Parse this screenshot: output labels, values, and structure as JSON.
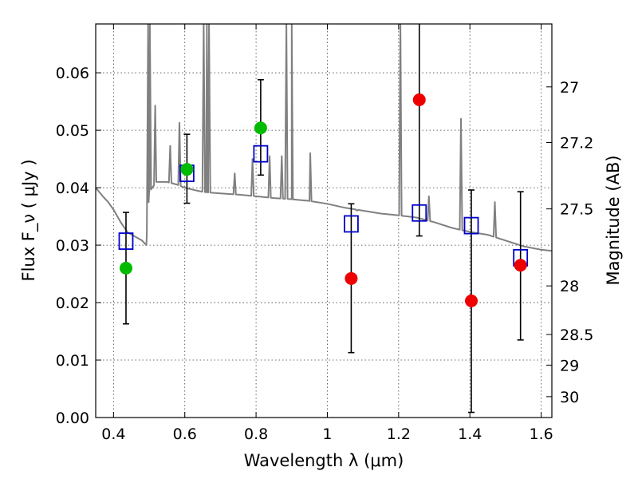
{
  "chart_data": {
    "type": "scatter",
    "title": "",
    "xlabel": "Wavelength  λ (μm)",
    "ylabel": "Flux  F_ν  ( μJy )",
    "y2label": "Magnitude (AB)",
    "xlim": [
      0.35,
      1.63
    ],
    "ylim": [
      0.0,
      0.0685
    ],
    "grid": true,
    "x_ticks": [
      {
        "value": 0.4,
        "label": "0.4"
      },
      {
        "value": 0.6,
        "label": "0.6"
      },
      {
        "value": 0.8,
        "label": "0.8"
      },
      {
        "value": 1.0,
        "label": "1"
      },
      {
        "value": 1.2,
        "label": "1.2"
      },
      {
        "value": 1.4,
        "label": "1.4"
      },
      {
        "value": 1.6,
        "label": "1.6"
      }
    ],
    "y_ticks": [
      {
        "value": 0.0,
        "label": "0.00"
      },
      {
        "value": 0.01,
        "label": "0.01"
      },
      {
        "value": 0.02,
        "label": "0.02"
      },
      {
        "value": 0.03,
        "label": "0.03"
      },
      {
        "value": 0.04,
        "label": "0.04"
      },
      {
        "value": 0.05,
        "label": "0.05"
      },
      {
        "value": 0.06,
        "label": "0.06"
      }
    ],
    "y2_ticks": [
      {
        "value": 27,
        "label": "27"
      },
      {
        "value": 27.2,
        "label": "27.2"
      },
      {
        "value": 27.5,
        "label": "27.5"
      },
      {
        "value": 28,
        "label": "28"
      },
      {
        "value": 28.5,
        "label": "28.5"
      },
      {
        "value": 29,
        "label": "29"
      },
      {
        "value": 30,
        "label": "30"
      }
    ],
    "series": [
      {
        "kind": "spectrum-line",
        "color": "#808080",
        "x": [
          0.35,
          0.37,
          0.385,
          0.4,
          0.42,
          0.44,
          0.46,
          0.48,
          0.492,
          0.5,
          0.52,
          0.55,
          0.58,
          0.6,
          0.62,
          0.64,
          0.66,
          0.7,
          0.75,
          0.8,
          0.85,
          0.9,
          0.95,
          1.0,
          1.05,
          1.1,
          1.15,
          1.2,
          1.25,
          1.3,
          1.35,
          1.4,
          1.45,
          1.5,
          1.55,
          1.6,
          1.63
        ],
        "y": [
          0.04,
          0.0385,
          0.0375,
          0.0362,
          0.034,
          0.0322,
          0.0315,
          0.0308,
          0.03,
          0.0392,
          0.041,
          0.041,
          0.0405,
          0.04,
          0.0397,
          0.0394,
          0.0392,
          0.039,
          0.0388,
          0.0385,
          0.0382,
          0.038,
          0.0377,
          0.0372,
          0.0365,
          0.036,
          0.0355,
          0.0352,
          0.0348,
          0.034,
          0.033,
          0.0323,
          0.0318,
          0.0308,
          0.0298,
          0.0292,
          0.029
        ],
        "emission_lines": [
          {
            "x": 0.497,
            "peak": 0.0685
          },
          {
            "x": 0.502,
            "peak": 0.0685
          },
          {
            "x": 0.517,
            "peak": 0.0543
          },
          {
            "x": 0.559,
            "peak": 0.0473
          },
          {
            "x": 0.585,
            "peak": 0.0513
          },
          {
            "x": 0.653,
            "peak": 0.0685
          },
          {
            "x": 0.662,
            "peak": 0.0685
          },
          {
            "x": 0.668,
            "peak": 0.0685
          },
          {
            "x": 0.74,
            "peak": 0.0425
          },
          {
            "x": 0.79,
            "peak": 0.045
          },
          {
            "x": 0.838,
            "peak": 0.0455
          },
          {
            "x": 0.872,
            "peak": 0.0455
          },
          {
            "x": 0.885,
            "peak": 0.0685
          },
          {
            "x": 0.9,
            "peak": 0.0685
          },
          {
            "x": 0.952,
            "peak": 0.046
          },
          {
            "x": 1.083,
            "peak": 0.036
          },
          {
            "x": 1.205,
            "peak": 0.0685
          },
          {
            "x": 1.285,
            "peak": 0.0385
          },
          {
            "x": 1.375,
            "peak": 0.052
          },
          {
            "x": 1.47,
            "peak": 0.0375
          }
        ]
      },
      {
        "kind": "model-photometry",
        "color": "#0000cc",
        "x": [
          0.435,
          0.606,
          0.813,
          1.067,
          1.258,
          1.404,
          1.542
        ],
        "y": [
          0.0307,
          0.0425,
          0.0459,
          0.0337,
          0.0356,
          0.0334,
          0.0278
        ]
      },
      {
        "kind": "detections",
        "color": "#00bb00",
        "x": [
          0.435,
          0.606,
          0.813
        ],
        "y": [
          0.026,
          0.0432,
          0.0504
        ],
        "yerr_low": [
          0.0163,
          0.0373,
          0.0422
        ],
        "yerr_high": [
          0.0357,
          0.0493,
          0.0588
        ]
      },
      {
        "kind": "upper-limits",
        "color": "#ee0000",
        "x": [
          1.067,
          1.258,
          1.404,
          1.542
        ],
        "y": [
          0.0242,
          0.0553,
          0.0203,
          0.0265
        ],
        "yerr_low": [
          0.0113,
          0.0316,
          0.0009,
          0.0135
        ],
        "yerr_high": [
          0.0372,
          0.0685,
          0.0396,
          0.0393
        ]
      }
    ]
  }
}
